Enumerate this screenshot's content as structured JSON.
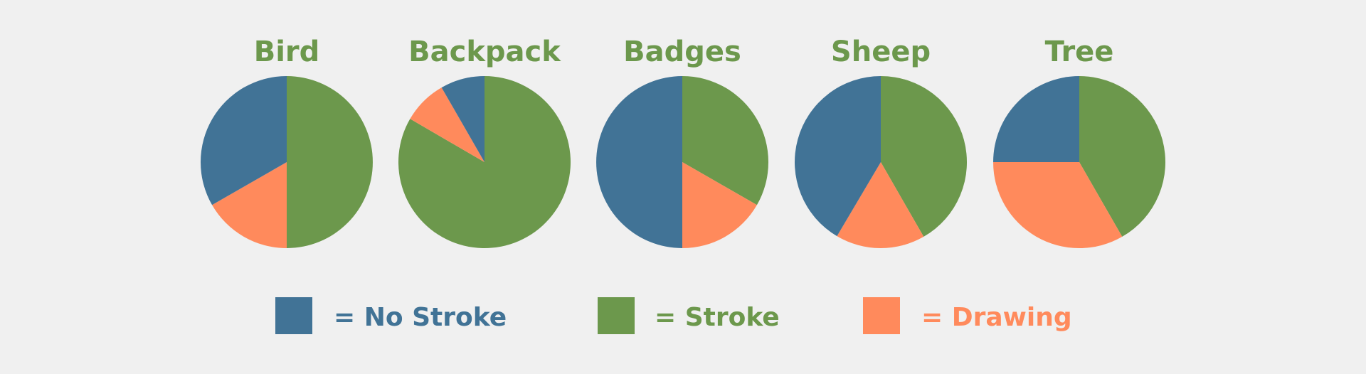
{
  "chart_data": {
    "type": "pie",
    "categories": [
      "No Stroke",
      "Stroke",
      "Drawing"
    ],
    "colors": {
      "No Stroke": "#417396",
      "Stroke": "#6c984c",
      "Drawing": "#ff8a5c"
    },
    "pies": [
      {
        "title": "Bird",
        "values": [
          33.3,
          50.0,
          16.7
        ]
      },
      {
        "title": "Backpack",
        "values": [
          8.3,
          83.3,
          8.3
        ]
      },
      {
        "title": "Badges",
        "values": [
          50.0,
          33.3,
          16.7
        ]
      },
      {
        "title": "Sheep",
        "values": [
          41.5,
          41.7,
          16.8
        ]
      },
      {
        "title": "Tree",
        "values": [
          25.0,
          41.7,
          33.3
        ]
      }
    ],
    "legend": [
      {
        "series": "No Stroke",
        "label": "= No Stroke"
      },
      {
        "series": "Stroke",
        "label": "= Stroke"
      },
      {
        "series": "Drawing",
        "label": "= Drawing"
      }
    ],
    "legend_placement": "bottom",
    "title_color": "#6c984c"
  }
}
